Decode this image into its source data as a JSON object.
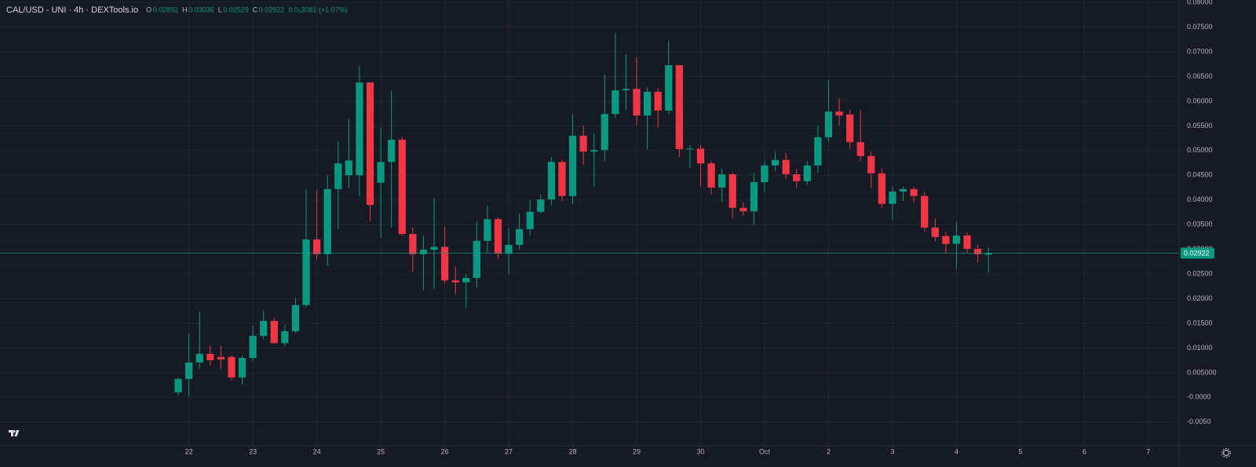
{
  "chart_data": {
    "type": "candlestick",
    "title": "CAL/USD - UNI · 4h · DEXTools.io",
    "ohlc_header": [
      {
        "key": "O",
        "value": "0.02892"
      },
      {
        "key": "H",
        "value": "0.03036"
      },
      {
        "key": "L",
        "value": "0.02529"
      },
      {
        "key": "C",
        "value": "0.02922"
      }
    ],
    "change": "0.0₃3081 (+1.07%)",
    "up_color": "#089981",
    "down_color": "#f23645",
    "x": [
      0,
      1,
      2,
      3,
      4,
      5,
      6,
      7,
      8,
      9,
      10,
      11,
      12,
      13,
      14,
      15,
      16,
      17,
      18,
      19,
      20,
      21,
      22,
      23,
      24,
      25,
      26,
      27,
      28,
      29,
      30,
      31,
      32,
      33,
      34,
      35,
      36,
      37,
      38,
      39,
      40,
      41,
      42,
      43,
      44,
      45,
      46,
      47,
      48,
      49,
      50,
      51,
      52,
      53,
      54,
      55,
      56,
      57,
      58,
      59,
      60,
      61,
      62,
      63,
      64,
      65,
      66,
      67,
      68,
      69,
      70,
      71,
      72,
      73,
      74,
      75,
      76
    ],
    "open": [
      0.00103,
      0.00373,
      0.00707,
      0.00882,
      0.0082,
      0.0082,
      0.00405,
      0.008,
      0.01247,
      0.0155,
      0.011,
      0.0134,
      0.0187,
      0.032,
      0.029,
      0.0422,
      0.045,
      0.045,
      0.0638,
      0.0435,
      0.0477,
      0.0522,
      0.0331,
      0.029,
      0.0299,
      0.0305,
      0.0237,
      0.0233,
      0.0242,
      0.0317,
      0.0361,
      0.0291,
      0.0309,
      0.0341,
      0.0376,
      0.0401,
      0.0477,
      0.0408,
      0.053,
      0.0498,
      0.0501,
      0.0574,
      0.0622,
      0.0625,
      0.0571,
      0.0619,
      0.0581,
      0.0673,
      0.0503,
      0.0504,
      0.0474,
      0.0425,
      0.0452,
      0.0384,
      0.0377,
      0.0436,
      0.047,
      0.0481,
      0.0452,
      0.0438,
      0.047,
      0.0527,
      0.0579,
      0.0573,
      0.0517,
      0.0489,
      0.0454,
      0.0392,
      0.0417,
      0.0422,
      0.0408,
      0.0344,
      0.0327,
      0.0311,
      0.0328,
      0.0301,
      0.02892
    ],
    "high": [
      0.00405,
      0.01295,
      0.0174,
      0.01057,
      0.0104,
      0.0085,
      0.0085,
      0.01454,
      0.01756,
      0.0161,
      0.0147,
      0.0201,
      0.0422,
      0.042,
      0.045,
      0.0519,
      0.0564,
      0.067,
      0.0638,
      0.0547,
      0.0622,
      0.0527,
      0.0344,
      0.0328,
      0.0404,
      0.0346,
      0.0265,
      0.0249,
      0.0357,
      0.0389,
      0.0365,
      0.0344,
      0.0373,
      0.04,
      0.0411,
      0.0487,
      0.0482,
      0.0574,
      0.0551,
      0.0535,
      0.0654,
      0.0738,
      0.0695,
      0.0689,
      0.0628,
      0.0627,
      0.0722,
      0.0673,
      0.0511,
      0.0511,
      0.0479,
      0.0463,
      0.0455,
      0.0395,
      0.0455,
      0.0479,
      0.0498,
      0.0495,
      0.0463,
      0.0479,
      0.0551,
      0.0643,
      0.0606,
      0.0582,
      0.0582,
      0.0498,
      0.0463,
      0.0427,
      0.0427,
      0.0427,
      0.0416,
      0.0363,
      0.0336,
      0.0355,
      0.0334,
      0.0309,
      0.03036
    ],
    "low": [
      0.0004,
      0.0002,
      0.0058,
      0.00644,
      0.0058,
      0.0034,
      0.0026,
      0.0074,
      0.0118,
      0.0109,
      0.0104,
      0.013,
      0.0182,
      0.028,
      0.0266,
      0.0341,
      0.0424,
      0.0408,
      0.0357,
      0.0323,
      0.0344,
      0.0328,
      0.0254,
      0.0217,
      0.022,
      0.023,
      0.0209,
      0.018,
      0.0223,
      0.0293,
      0.028,
      0.0249,
      0.03,
      0.0328,
      0.0373,
      0.0389,
      0.0398,
      0.0392,
      0.0471,
      0.0427,
      0.0479,
      0.0566,
      0.0582,
      0.055,
      0.0502,
      0.0547,
      0.0574,
      0.0487,
      0.0464,
      0.0428,
      0.0411,
      0.0395,
      0.0363,
      0.0368,
      0.0349,
      0.0416,
      0.0458,
      0.0443,
      0.0424,
      0.0431,
      0.0455,
      0.0519,
      0.055,
      0.0503,
      0.0479,
      0.0424,
      0.0384,
      0.036,
      0.0398,
      0.0395,
      0.0335,
      0.0316,
      0.0293,
      0.0261,
      0.0293,
      0.0273,
      0.02529
    ],
    "close": [
      0.00373,
      0.00707,
      0.00882,
      0.00755,
      0.0077,
      0.00405,
      0.008,
      0.01247,
      0.0155,
      0.011,
      0.0134,
      0.0187,
      0.032,
      0.029,
      0.0422,
      0.0474,
      0.048,
      0.0638,
      0.039,
      0.0477,
      0.0522,
      0.0331,
      0.029,
      0.0299,
      0.0305,
      0.0237,
      0.0233,
      0.0242,
      0.0317,
      0.0361,
      0.0291,
      0.0309,
      0.0341,
      0.0376,
      0.0401,
      0.0477,
      0.0408,
      0.053,
      0.0498,
      0.0501,
      0.0574,
      0.0622,
      0.0625,
      0.0571,
      0.0619,
      0.0581,
      0.0673,
      0.0503,
      0.0504,
      0.0474,
      0.0425,
      0.0452,
      0.0384,
      0.0377,
      0.0436,
      0.047,
      0.0481,
      0.0452,
      0.0438,
      0.047,
      0.0527,
      0.0579,
      0.0571,
      0.0517,
      0.0489,
      0.0454,
      0.0392,
      0.0417,
      0.0422,
      0.0408,
      0.0344,
      0.0325,
      0.0311,
      0.0328,
      0.0301,
      0.029,
      0.02922
    ],
    "last_price": 0.02922,
    "xlim": [
      -16.72,
      93.88
    ],
    "xticks": [
      {
        "value": 1,
        "label": "22"
      },
      {
        "value": 7,
        "label": "23"
      },
      {
        "value": 13,
        "label": "24"
      },
      {
        "value": 19,
        "label": "25"
      },
      {
        "value": 25,
        "label": "26"
      },
      {
        "value": 31,
        "label": "27"
      },
      {
        "value": 37,
        "label": "28"
      },
      {
        "value": 43,
        "label": "29"
      },
      {
        "value": 49,
        "label": "30"
      },
      {
        "value": 55,
        "label": "Oct"
      },
      {
        "value": 61,
        "label": "2"
      },
      {
        "value": 67,
        "label": "3"
      },
      {
        "value": 73,
        "label": "4"
      },
      {
        "value": 79,
        "label": "5"
      },
      {
        "value": 85,
        "label": "6"
      },
      {
        "value": 91,
        "label": "7"
      }
    ],
    "ylim": [
      -0.0098,
      0.0805
    ],
    "yticks": [
      {
        "value": 0.08,
        "label": "0.08000"
      },
      {
        "value": 0.075,
        "label": "0.07500"
      },
      {
        "value": 0.07,
        "label": "0.07000"
      },
      {
        "value": 0.065,
        "label": "0.06500"
      },
      {
        "value": 0.06,
        "label": "0.06000"
      },
      {
        "value": 0.055,
        "label": "0.05500"
      },
      {
        "value": 0.05,
        "label": "0.05000"
      },
      {
        "value": 0.045,
        "label": "0.04500"
      },
      {
        "value": 0.04,
        "label": "0.04000"
      },
      {
        "value": 0.035,
        "label": "0.03500"
      },
      {
        "value": 0.03,
        "label": "0.03000"
      },
      {
        "value": 0.025,
        "label": "0.02500"
      },
      {
        "value": 0.02,
        "label": "0.02000"
      },
      {
        "value": 0.015,
        "label": "0.01500"
      },
      {
        "value": 0.01,
        "label": "0.01000"
      },
      {
        "value": 0.005,
        "label": "0.005000"
      },
      {
        "value": 0,
        "label": "-0.0000"
      },
      {
        "value": -0.005,
        "label": "-0.0050"
      }
    ],
    "grid": true
  }
}
